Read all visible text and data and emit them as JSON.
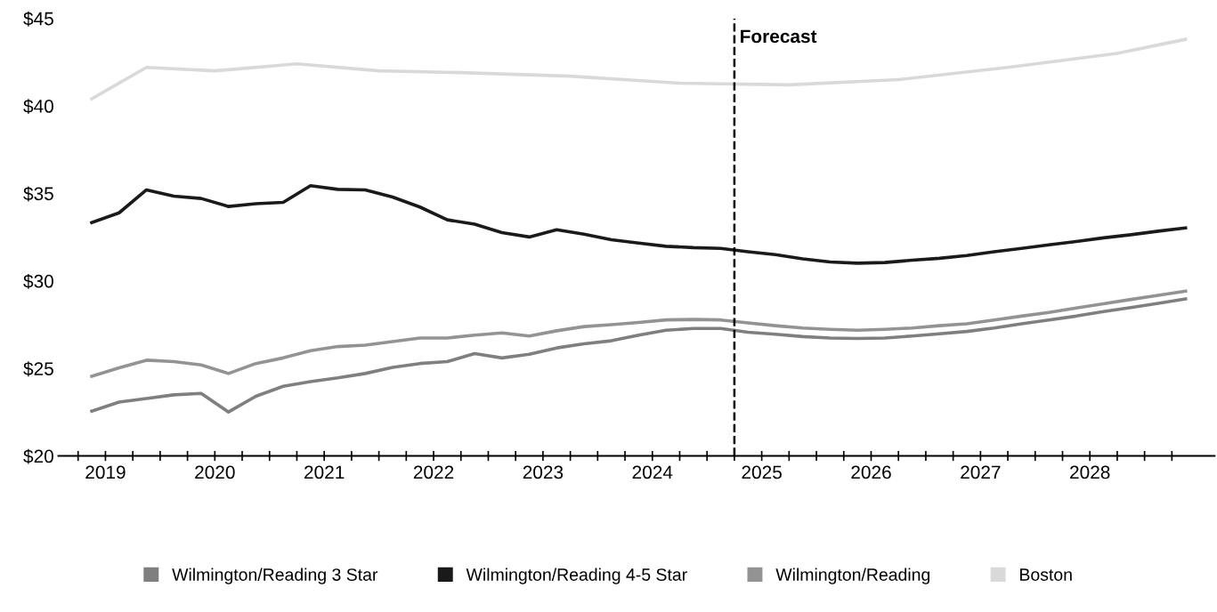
{
  "chart_data": {
    "type": "line",
    "x": [
      2019.375,
      2019.625,
      2019.875,
      2020.125,
      2020.375,
      2020.625,
      2020.875,
      2021.125,
      2021.375,
      2021.625,
      2021.875,
      2022.125,
      2022.375,
      2022.625,
      2022.875,
      2023.125,
      2023.375,
      2023.625,
      2023.875,
      2024.125,
      2024.375,
      2024.625,
      2024.875,
      2025.125,
      2025.375,
      2025.625,
      2025.875,
      2026.125,
      2026.375,
      2026.625,
      2026.875,
      2027.125,
      2027.375,
      2027.625,
      2027.875,
      2028.125,
      2028.375,
      2028.625,
      2028.875,
      2029.125,
      2029.375
    ],
    "series": [
      {
        "name": "Wilmington/Reading 3 Star",
        "color": "#7f7f7f",
        "values": [
          22.56,
          23.08,
          23.28,
          23.49,
          23.57,
          22.51,
          23.41,
          23.98,
          24.25,
          24.46,
          24.71,
          25.06,
          25.28,
          25.39,
          25.85,
          25.6,
          25.81,
          26.17,
          26.41,
          26.58,
          26.9,
          27.18,
          27.28,
          27.28,
          27.07,
          26.95,
          26.82,
          26.74,
          26.71,
          26.74,
          26.85,
          26.98,
          27.11,
          27.31,
          27.55,
          27.77,
          27.99,
          28.25,
          28.48,
          28.72,
          28.97
        ]
      },
      {
        "name": "Wilmington/Reading 4-5 Star",
        "color": "#1a1a1a",
        "values": [
          33.33,
          33.89,
          35.2,
          34.84,
          34.71,
          34.25,
          34.41,
          34.49,
          35.44,
          35.23,
          35.2,
          34.79,
          34.22,
          33.49,
          33.24,
          32.76,
          32.51,
          32.92,
          32.67,
          32.35,
          32.16,
          31.98,
          31.9,
          31.86,
          31.67,
          31.5,
          31.26,
          31.08,
          31.01,
          31.05,
          31.18,
          31.29,
          31.45,
          31.67,
          31.86,
          32.06,
          32.25,
          32.46,
          32.64,
          32.84,
          33.03
        ]
      },
      {
        "name": "Wilmington/Reading",
        "color": "#939393",
        "values": [
          24.55,
          25.03,
          25.47,
          25.39,
          25.2,
          24.71,
          25.28,
          25.6,
          26.01,
          26.25,
          26.33,
          26.53,
          26.74,
          26.74,
          26.9,
          27.03,
          26.85,
          27.15,
          27.39,
          27.5,
          27.63,
          27.77,
          27.8,
          27.77,
          27.6,
          27.44,
          27.31,
          27.23,
          27.18,
          27.23,
          27.31,
          27.44,
          27.55,
          27.77,
          27.99,
          28.2,
          28.45,
          28.69,
          28.94,
          29.18,
          29.42
        ]
      },
      {
        "name": "Boston",
        "color": "#d9d9d9",
        "x": [
          2019.375,
          2019.875,
          2020.5,
          2021.25,
          2022.0,
          2022.75,
          2023.75,
          2024.75,
          2025.75,
          2026.75,
          2027.75,
          2028.75,
          2029.375
        ],
        "values": [
          40.4,
          42.2,
          42.0,
          42.4,
          42.0,
          41.9,
          41.7,
          41.3,
          41.2,
          41.5,
          42.2,
          43.0,
          43.8
        ]
      }
    ],
    "xlim": [
      2019.07,
      2029.64
    ],
    "xticks": [
      {
        "value": 2019.25,
        "label": null
      },
      {
        "value": 2019.5,
        "label": "2019"
      },
      {
        "value": 2019.75,
        "label": null
      },
      {
        "value": 2020,
        "label": null
      },
      {
        "value": 2020.25,
        "label": null
      },
      {
        "value": 2020.5,
        "label": "2020"
      },
      {
        "value": 2020.75,
        "label": null
      },
      {
        "value": 2021,
        "label": null
      },
      {
        "value": 2021.25,
        "label": null
      },
      {
        "value": 2021.5,
        "label": "2021"
      },
      {
        "value": 2021.75,
        "label": null
      },
      {
        "value": 2022,
        "label": null
      },
      {
        "value": 2022.25,
        "label": null
      },
      {
        "value": 2022.5,
        "label": "2022"
      },
      {
        "value": 2022.75,
        "label": null
      },
      {
        "value": 2023,
        "label": null
      },
      {
        "value": 2023.25,
        "label": null
      },
      {
        "value": 2023.5,
        "label": "2023"
      },
      {
        "value": 2023.75,
        "label": null
      },
      {
        "value": 2024,
        "label": null
      },
      {
        "value": 2024.25,
        "label": null
      },
      {
        "value": 2024.5,
        "label": "2024"
      },
      {
        "value": 2024.75,
        "label": null
      },
      {
        "value": 2025,
        "label": null
      },
      {
        "value": 2025.25,
        "label": null
      },
      {
        "value": 2025.5,
        "label": "2025"
      },
      {
        "value": 2025.75,
        "label": null
      },
      {
        "value": 2026,
        "label": null
      },
      {
        "value": 2026.25,
        "label": null
      },
      {
        "value": 2026.5,
        "label": "2026"
      },
      {
        "value": 2026.75,
        "label": null
      },
      {
        "value": 2027,
        "label": null
      },
      {
        "value": 2027.25,
        "label": null
      },
      {
        "value": 2027.5,
        "label": "2027"
      },
      {
        "value": 2027.75,
        "label": null
      },
      {
        "value": 2028,
        "label": null
      },
      {
        "value": 2028.25,
        "label": null
      },
      {
        "value": 2028.5,
        "label": "2028"
      },
      {
        "value": 2028.75,
        "label": null
      },
      {
        "value": 2029,
        "label": null
      },
      {
        "value": 2029.25,
        "label": null
      }
    ],
    "ylim": [
      20,
      45
    ],
    "yticks": [
      {
        "value": 20,
        "label": "$20"
      },
      {
        "value": 25,
        "label": "$25"
      },
      {
        "value": 30,
        "label": "$30"
      },
      {
        "value": 35,
        "label": "$35"
      },
      {
        "value": 40,
        "label": "$40"
      },
      {
        "value": 45,
        "label": "$45"
      }
    ],
    "ref_lines": [
      {
        "axis": "x",
        "value": 2025.25,
        "label": "Forecast",
        "color": "#000000",
        "line_style": "dashed"
      }
    ],
    "legend": "bottom",
    "grid": false,
    "marker": "none",
    "line_style": "solid"
  }
}
